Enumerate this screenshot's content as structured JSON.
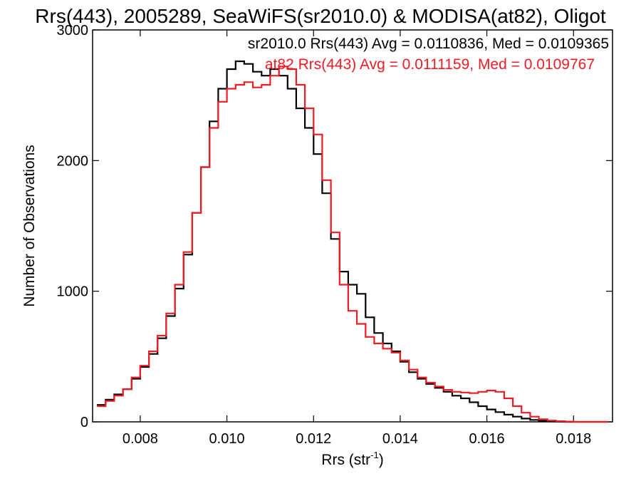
{
  "chart_data": {
    "type": "line",
    "title": "Rrs(443), 2005289, SeaWiFS(sr2010.0) & MODISA(at82), Oligot",
    "xlabel": "Rrs (str",
    "xlabel_superscript": "-1",
    "xlabel_suffix": ")",
    "ylabel": "Number of Observations",
    "xlim": [
      0.0069,
      0.0189
    ],
    "ylim": [
      0,
      3000
    ],
    "x_ticks": [
      0.008,
      0.01,
      0.012,
      0.014,
      0.016,
      0.018
    ],
    "x_tick_labels": [
      "0.008",
      "0.010",
      "0.012",
      "0.014",
      "0.016",
      "0.018"
    ],
    "y_ticks": [
      0,
      1000,
      2000,
      3000
    ],
    "y_tick_labels": [
      "0",
      "1000",
      "2000",
      "3000"
    ],
    "grid": false,
    "legend_position": "top-right",
    "series": [
      {
        "name": "sr2010.0 Rrs(443) Avg = 0.0110836, Med = 0.0109365",
        "color": "#000000",
        "x": [
          0.007,
          0.0072,
          0.0074,
          0.0076,
          0.0078,
          0.008,
          0.0082,
          0.0084,
          0.0086,
          0.0088,
          0.009,
          0.0092,
          0.0094,
          0.0096,
          0.0098,
          0.01,
          0.0102,
          0.0104,
          0.0106,
          0.0108,
          0.011,
          0.0112,
          0.0114,
          0.0116,
          0.0118,
          0.012,
          0.0122,
          0.0124,
          0.0126,
          0.0128,
          0.013,
          0.0132,
          0.0134,
          0.0136,
          0.0138,
          0.014,
          0.0142,
          0.0144,
          0.0146,
          0.0148,
          0.015,
          0.0152,
          0.0154,
          0.0156,
          0.0158,
          0.016,
          0.0162,
          0.0164,
          0.0166,
          0.0168,
          0.017,
          0.0172,
          0.0174,
          0.0176,
          0.0178,
          0.018,
          0.0182,
          0.0184,
          0.0186,
          0.0188
        ],
        "y": [
          130,
          170,
          210,
          250,
          330,
          420,
          520,
          640,
          810,
          1020,
          1280,
          1600,
          1950,
          2300,
          2550,
          2700,
          2760,
          2740,
          2680,
          2650,
          2700,
          2650,
          2550,
          2400,
          2250,
          2050,
          1750,
          1400,
          1150,
          1050,
          980,
          800,
          680,
          600,
          540,
          460,
          380,
          330,
          290,
          260,
          230,
          200,
          180,
          150,
          120,
          95,
          75,
          55,
          40,
          25,
          15,
          8,
          4,
          2,
          0,
          0,
          0,
          0,
          0,
          0
        ]
      },
      {
        "name": "at82 Rrs(443) Avg = 0.0111159, Med = 0.0109767",
        "color": "#ee1c25",
        "x": [
          0.007,
          0.0072,
          0.0074,
          0.0076,
          0.0078,
          0.008,
          0.0082,
          0.0084,
          0.0086,
          0.0088,
          0.009,
          0.0092,
          0.0094,
          0.0096,
          0.0098,
          0.01,
          0.0102,
          0.0104,
          0.0106,
          0.0108,
          0.011,
          0.0112,
          0.0114,
          0.0116,
          0.0118,
          0.012,
          0.0122,
          0.0124,
          0.0126,
          0.0128,
          0.013,
          0.0132,
          0.0134,
          0.0136,
          0.0138,
          0.014,
          0.0142,
          0.0144,
          0.0146,
          0.0148,
          0.015,
          0.0152,
          0.0154,
          0.0156,
          0.0158,
          0.016,
          0.0162,
          0.0164,
          0.0166,
          0.0168,
          0.017,
          0.0172,
          0.0174,
          0.0176,
          0.0178,
          0.018,
          0.0182,
          0.0184,
          0.0186,
          0.0188
        ],
        "y": [
          120,
          160,
          200,
          250,
          340,
          430,
          540,
          660,
          830,
          1050,
          1300,
          1600,
          1950,
          2250,
          2450,
          2550,
          2580,
          2600,
          2560,
          2580,
          2650,
          2720,
          2700,
          2580,
          2400,
          2200,
          1850,
          1450,
          1050,
          850,
          750,
          650,
          600,
          560,
          530,
          470,
          400,
          340,
          300,
          270,
          245,
          230,
          225,
          220,
          230,
          240,
          230,
          180,
          120,
          70,
          40,
          20,
          10,
          5,
          2,
          0,
          0,
          0,
          0,
          0
        ]
      }
    ]
  }
}
